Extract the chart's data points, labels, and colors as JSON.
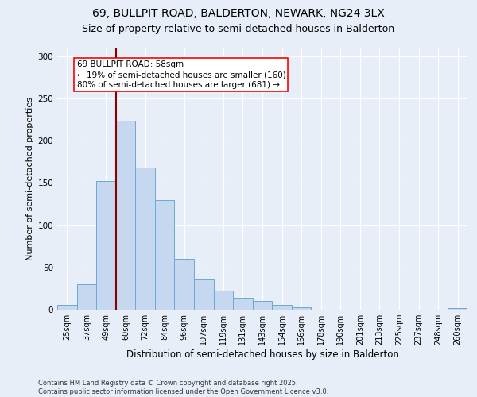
{
  "title1": "69, BULLPIT ROAD, BALDERTON, NEWARK, NG24 3LX",
  "title2": "Size of property relative to semi-detached houses in Balderton",
  "xlabel": "Distribution of semi-detached houses by size in Balderton",
  "ylabel": "Number of semi-detached properties",
  "categories": [
    "25sqm",
    "37sqm",
    "49sqm",
    "60sqm",
    "72sqm",
    "84sqm",
    "96sqm",
    "107sqm",
    "119sqm",
    "131sqm",
    "143sqm",
    "154sqm",
    "166sqm",
    "178sqm",
    "190sqm",
    "201sqm",
    "213sqm",
    "225sqm",
    "237sqm",
    "248sqm",
    "260sqm"
  ],
  "values": [
    6,
    30,
    152,
    224,
    168,
    130,
    60,
    36,
    23,
    14,
    10,
    6,
    3,
    0,
    0,
    0,
    0,
    0,
    0,
    0,
    2
  ],
  "bar_color": "#c5d8f0",
  "bar_edge_color": "#6aaad4",
  "vline_color": "#8b0000",
  "annotation_text": "69 BULLPIT ROAD: 58sqm\n← 19% of semi-detached houses are smaller (160)\n80% of semi-detached houses are larger (681) →",
  "ylim": [
    0,
    310
  ],
  "footer": "Contains HM Land Registry data © Crown copyright and database right 2025.\nContains public sector information licensed under the Open Government Licence v3.0.",
  "background_color": "#e8eef8",
  "grid_color": "#ffffff",
  "title1_fontsize": 10,
  "title2_fontsize": 9,
  "xlabel_fontsize": 8.5,
  "ylabel_fontsize": 8,
  "tick_fontsize": 7,
  "footer_fontsize": 6,
  "ann_fontsize": 7.5
}
